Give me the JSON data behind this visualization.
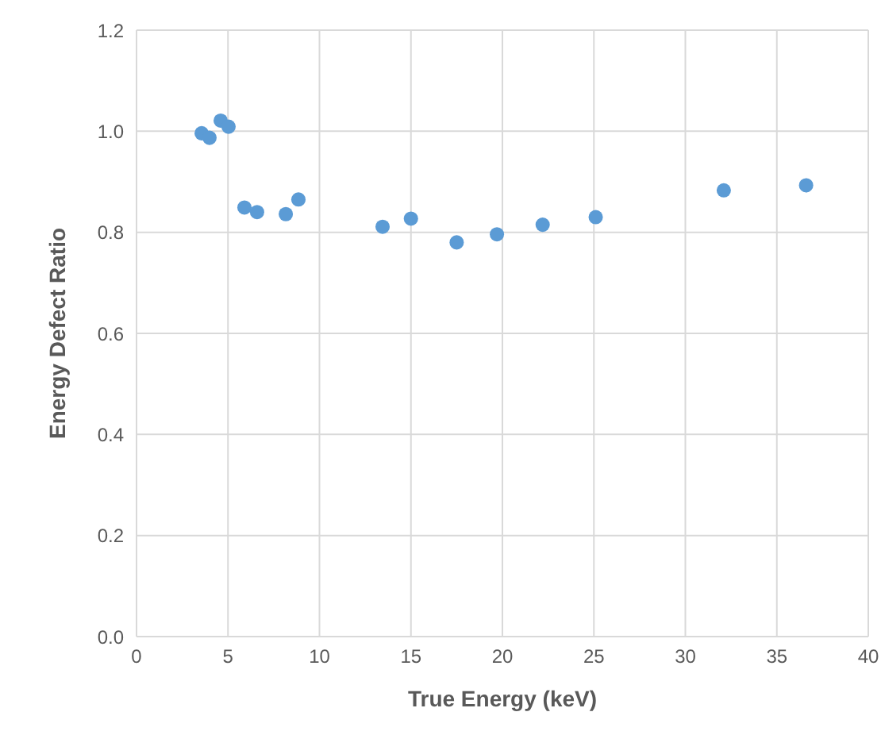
{
  "chart_data": {
    "type": "scatter",
    "xlabel": "True Energy (keV)",
    "ylabel": "Energy Defect Ratio",
    "x": [
      3.56,
      3.99,
      4.6,
      5.03,
      5.9,
      6.59,
      8.16,
      8.85,
      13.45,
      15.0,
      17.5,
      19.7,
      22.2,
      25.1,
      32.1,
      36.6
    ],
    "series": [
      {
        "color": "#5b9bd5",
        "values": [
          0.996,
          0.987,
          1.021,
          1.009,
          0.849,
          0.84,
          0.836,
          0.865,
          0.811,
          0.827,
          0.78,
          0.796,
          0.815,
          0.83,
          0.883,
          0.893
        ]
      }
    ],
    "xlim": [
      0,
      40
    ],
    "xticks": [
      0,
      5,
      10,
      15,
      20,
      25,
      30,
      35,
      40
    ],
    "ylim": [
      0,
      1.2
    ],
    "yticks": [
      {
        "value": 0,
        "label": "0.0"
      },
      0.2,
      0.4,
      0.6,
      0.8,
      {
        "value": 1,
        "label": "1.0"
      },
      1.2
    ],
    "grid": true,
    "legend": false,
    "marker": "circle"
  }
}
